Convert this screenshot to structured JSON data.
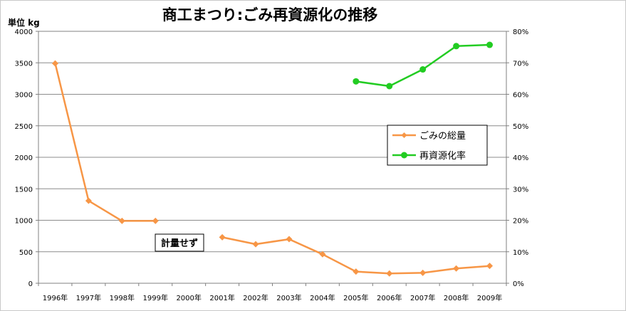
{
  "chart_data": {
    "type": "line",
    "title": "商工まつり:ごみ再資源化の推移",
    "y_unit_label": "単位 kg",
    "categories": [
      "1996年",
      "1997年",
      "1998年",
      "1999年",
      "2000年",
      "2001年",
      "2002年",
      "2003年",
      "2004年",
      "2005年",
      "2006年",
      "2007年",
      "2008年",
      "2009年"
    ],
    "y_left_ticks": [
      "0",
      "500",
      "1000",
      "1500",
      "2000",
      "2500",
      "3000",
      "3500",
      "4000"
    ],
    "y_right_ticks": [
      "0%",
      "10%",
      "20%",
      "30%",
      "40%",
      "50%",
      "60%",
      "70%",
      "80%"
    ],
    "ylim_left": [
      0,
      4000
    ],
    "ylim_right": [
      0,
      0.8
    ],
    "grid": true,
    "legend_position": "right",
    "annotation": "計量せず",
    "series": [
      {
        "name": "ごみの総量",
        "axis": "left",
        "color": "#f79646",
        "marker": "diamond",
        "values": [
          3490,
          1310,
          990,
          990,
          null,
          730,
          620,
          700,
          460,
          185,
          155,
          165,
          235,
          275
        ]
      },
      {
        "name": "再資源化率",
        "axis": "right",
        "color": "#22cc22",
        "marker": "circle",
        "values": [
          null,
          null,
          null,
          null,
          null,
          null,
          null,
          null,
          null,
          0.641,
          0.626,
          0.679,
          0.753,
          0.757
        ]
      }
    ]
  }
}
